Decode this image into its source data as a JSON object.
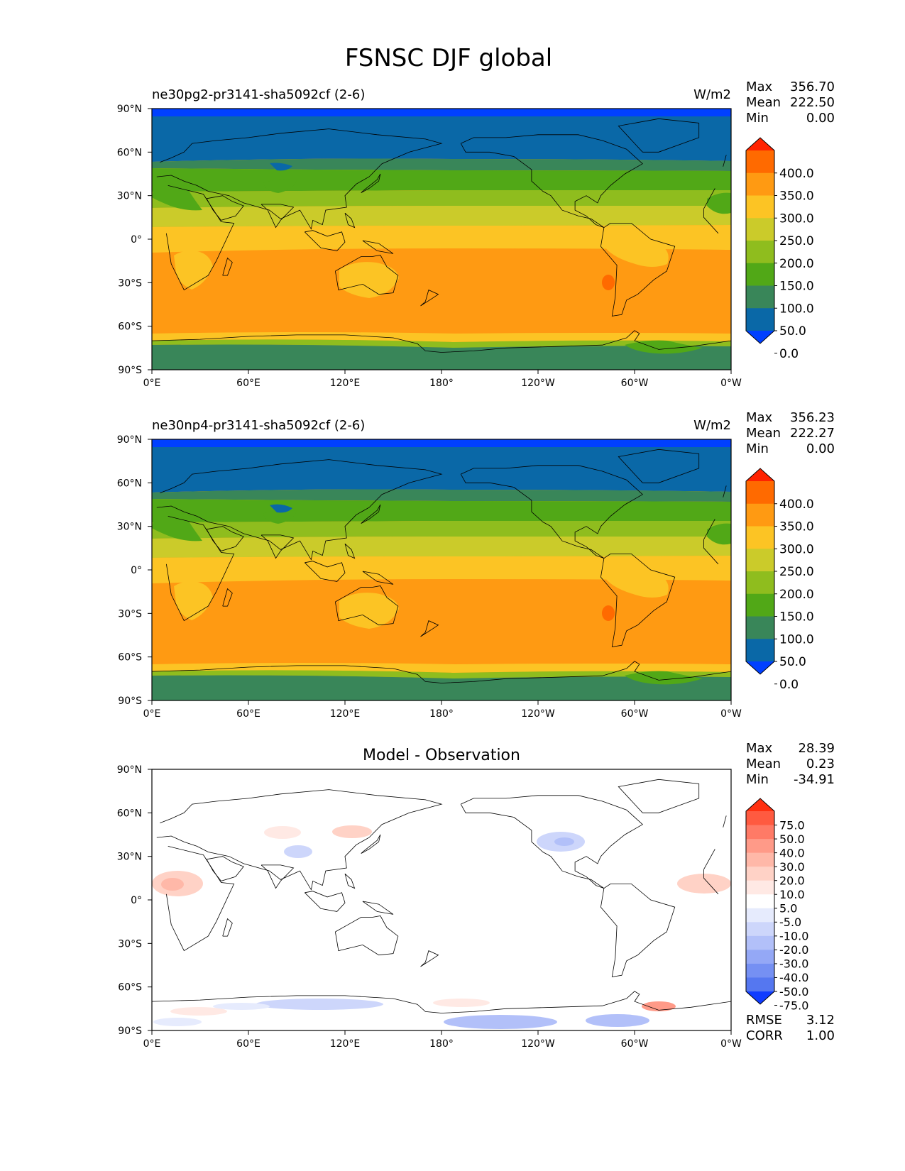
{
  "figure": {
    "title": "FSNSC DJF global"
  },
  "axis": {
    "lat_ticks": [
      "90°N",
      "60°N",
      "30°N",
      "0°",
      "30°S",
      "60°S",
      "90°S"
    ],
    "lon_ticks": [
      "0°E",
      "60°E",
      "120°E",
      "180°",
      "120°W",
      "60°W",
      "0°W"
    ]
  },
  "stat_labels": {
    "max": "Max",
    "mean": "Mean",
    "min": "Min",
    "rmse": "RMSE",
    "corr": "CORR"
  },
  "panels": [
    {
      "title_left": "ne30pg2-pr3141-sha5092cf (2-6)",
      "units": "W/m2",
      "stats": {
        "max": "356.70",
        "mean": "222.50",
        "min": "0.00"
      }
    },
    {
      "title_left": "ne30np4-pr3141-sha5092cf (2-6)",
      "units": "W/m2",
      "stats": {
        "max": "356.23",
        "mean": "222.27",
        "min": "0.00"
      }
    },
    {
      "title_center": "Model - Observation",
      "stats": {
        "max": "28.39",
        "mean": "0.23",
        "min": "-34.91",
        "rmse": "3.12",
        "corr": "1.00"
      }
    }
  ],
  "colorbars": {
    "main": {
      "labels": [
        "400.0",
        "350.0",
        "300.0",
        "250.0",
        "200.0",
        "150.0",
        "100.0",
        "50.0",
        "0.0"
      ],
      "colors": [
        "#ff2200",
        "#ff6a00",
        "#ff9a12",
        "#fcc424",
        "#cbcb2a",
        "#8fbd1e",
        "#51a817",
        "#398659",
        "#0a68a7",
        "#0040ff"
      ]
    },
    "diff": {
      "labels": [
        "75.0",
        "50.0",
        "40.0",
        "30.0",
        "20.0",
        "10.0",
        "5.0",
        "-5.0",
        "-10.0",
        "-20.0",
        "-30.0",
        "-40.0",
        "-50.0",
        "-75.0"
      ],
      "colors": [
        "#ff3010",
        "#ff5a40",
        "#ff7a66",
        "#ff9a88",
        "#ffb8a8",
        "#ffd2c6",
        "#ffe9e4",
        "#ffffff",
        "#e6ebfd",
        "#cdd6fb",
        "#b2c0f9",
        "#94a8f6",
        "#7590f3",
        "#5577f0",
        "#0f3cff"
      ]
    }
  },
  "chart_data": [
    {
      "type": "heatmap",
      "variable": "FSNSC",
      "season": "DJF",
      "title": "ne30pg2-pr3141-sha5092cf (2-6)",
      "units": "W/m2",
      "lat_range": [
        -90,
        90
      ],
      "lon_range": [
        0,
        360
      ],
      "contour_levels": [
        0,
        50,
        100,
        150,
        200,
        250,
        300,
        350,
        400
      ],
      "zonal_pattern_lat": [
        90,
        85,
        72,
        62,
        52,
        45,
        38,
        30,
        25,
        20,
        10,
        0,
        -10,
        -20,
        -40,
        -60,
        -65,
        -68,
        -72,
        -80,
        -90
      ],
      "zonal_pattern_value": [
        0,
        20,
        60,
        75,
        100,
        130,
        150,
        175,
        200,
        225,
        260,
        275,
        320,
        335,
        330,
        310,
        260,
        210,
        110,
        100,
        100
      ],
      "stats": {
        "max": 356.7,
        "mean": 222.5,
        "min": 0.0
      }
    },
    {
      "type": "heatmap",
      "variable": "FSNSC",
      "season": "DJF",
      "title": "ne30np4-pr3141-sha5092cf (2-6)",
      "units": "W/m2",
      "lat_range": [
        -90,
        90
      ],
      "lon_range": [
        0,
        360
      ],
      "contour_levels": [
        0,
        50,
        100,
        150,
        200,
        250,
        300,
        350,
        400
      ],
      "zonal_pattern_lat": [
        90,
        85,
        72,
        62,
        52,
        45,
        38,
        30,
        25,
        20,
        10,
        0,
        -10,
        -20,
        -40,
        -60,
        -65,
        -68,
        -72,
        -80,
        -90
      ],
      "zonal_pattern_value": [
        0,
        20,
        60,
        75,
        100,
        130,
        150,
        175,
        200,
        225,
        260,
        275,
        320,
        335,
        330,
        310,
        260,
        210,
        110,
        100,
        100
      ],
      "stats": {
        "max": 356.23,
        "mean": 222.27,
        "min": 0.0
      }
    },
    {
      "type": "heatmap",
      "title": "Model - Observation",
      "lat_range": [
        -90,
        90
      ],
      "lon_range": [
        0,
        360
      ],
      "contour_levels": [
        -75,
        -50,
        -40,
        -30,
        -20,
        -10,
        -5,
        5,
        10,
        20,
        30,
        40,
        50,
        75
      ],
      "features": [
        {
          "lon": 15,
          "lat": 8,
          "value": 14
        },
        {
          "lon": 345,
          "lat": 9,
          "value": 12
        },
        {
          "lon": 60,
          "lat": 48,
          "value": 9
        },
        {
          "lon": 100,
          "lat": 48,
          "value": 8
        },
        {
          "lon": 95,
          "lat": 30,
          "value": -9
        },
        {
          "lon": 238,
          "lat": 44,
          "value": -11
        },
        {
          "lon": 320,
          "lat": -74,
          "value": 28
        },
        {
          "lon": 110,
          "lat": -76,
          "value": -12
        },
        {
          "lon": 215,
          "lat": -80,
          "value": -14
        },
        {
          "lon": 280,
          "lat": -78,
          "value": -12
        }
      ],
      "stats": {
        "max": 28.39,
        "mean": 0.23,
        "min": -34.91,
        "rmse": 3.12,
        "corr": 1.0
      }
    }
  ]
}
